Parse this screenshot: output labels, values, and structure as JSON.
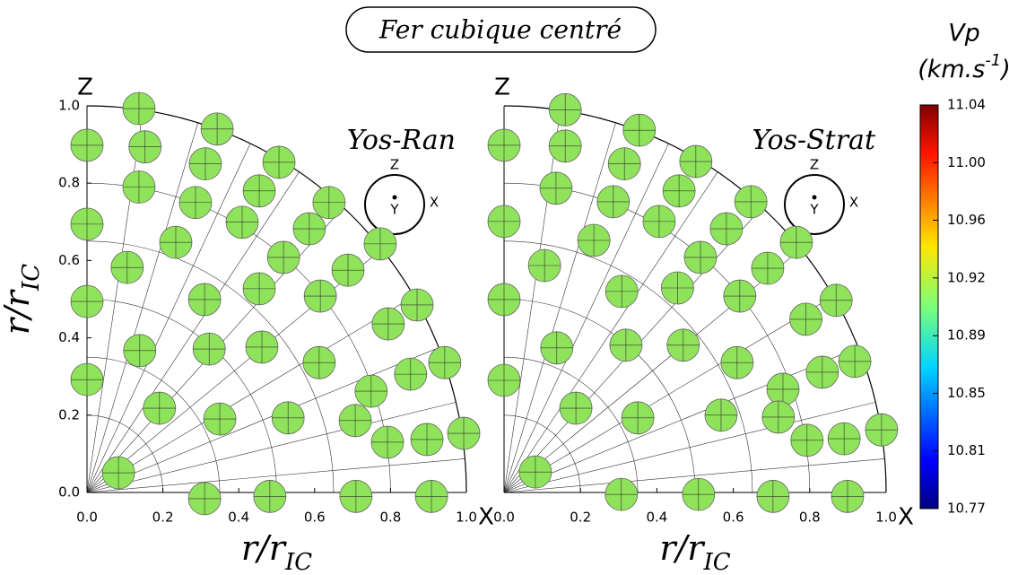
{
  "title": "Fer cubique centré",
  "colorbar": {
    "label": "Vp",
    "unit": "(km.s",
    "unit_sup": "-1",
    "unit_end": ")",
    "clim": [
      10.77,
      11.04
    ],
    "ticks": [
      10.77,
      {
        "value": 10.8086,
        "label": "10.81"
      },
      {
        "value": 10.8471,
        "label": "10.85"
      },
      {
        "value": 10.8857,
        "label": "10.89"
      },
      {
        "value": 10.9243,
        "label": "10.92"
      },
      {
        "value": 10.9629,
        "label": "10.96"
      },
      {
        "value": 11.0014,
        "label": "11.00"
      },
      11.04
    ]
  },
  "chart_data": [
    {
      "type": "scatter",
      "title": "Yos-Ran",
      "color": "#8fe35a",
      "top_label": "Z",
      "right_label": "X",
      "inset": {
        "top": "Z",
        "center": "Y",
        "right": "X"
      },
      "xlabel": {
        "main": "r/r",
        "sub": "IC"
      },
      "ylabel": {
        "main": "r/r",
        "sub": "IC"
      },
      "x": [
        0.137,
        0.343,
        0,
        0.153,
        0.312,
        0.506,
        0.137,
        0.286,
        0.454,
        0.638,
        0,
        0.409,
        0.234,
        0.586,
        0.773,
        0.518,
        0.106,
        0.688,
        0.454,
        0.615,
        0,
        0.31,
        0.87,
        0.794,
        0.139,
        0.322,
        0.461,
        0.612,
        0.943,
        0.853,
        0.749,
        0,
        0.191,
        0.35,
        0.53,
        0.707,
        0.993,
        0.896,
        0.792,
        0.083,
        0.31,
        0.482,
        0.709,
        0.908
      ],
      "y": [
        0.993,
        0.94,
        0.898,
        0.894,
        0.85,
        0.854,
        0.79,
        0.75,
        0.78,
        0.75,
        0.694,
        0.699,
        0.647,
        0.682,
        0.643,
        0.608,
        0.582,
        0.575,
        0.527,
        0.508,
        0.494,
        0.499,
        0.485,
        0.436,
        0.367,
        0.371,
        0.376,
        0.336,
        0.336,
        0.306,
        0.262,
        0.292,
        0.218,
        0.19,
        0.193,
        0.186,
        0.153,
        0.137,
        0.13,
        0.051,
        -0.016,
        -0.01,
        -0.01,
        -0.01
      ],
      "xlim": [
        0,
        1
      ],
      "ylim": [
        0,
        1
      ],
      "xticks": [
        {
          "value": 0,
          "label": "0.0"
        },
        0.2,
        0.4,
        0.6,
        0.8,
        {
          "value": 1,
          "label": "1.0"
        }
      ],
      "yticks": [
        {
          "value": 0,
          "label": "0.0"
        },
        0.2,
        0.4,
        0.6,
        0.8,
        {
          "value": 1,
          "label": "1.0"
        }
      ]
    },
    {
      "type": "scatter",
      "title": "Yos-Strat",
      "color": "#8fe35a",
      "top_label": "Z",
      "right_label": "X",
      "inset": {
        "top": "Z",
        "center": "Y",
        "right": "X"
      },
      "xlabel": {
        "main": "r/r",
        "sub": "IC"
      },
      "x": [
        0.16,
        0.354,
        0,
        0.16,
        0.315,
        0.502,
        0.136,
        0.286,
        0.458,
        0.646,
        0,
        0.406,
        0.235,
        0.582,
        0.765,
        0.514,
        0.106,
        0.69,
        0.454,
        0.617,
        0,
        0.308,
        0.869,
        0.79,
        0.138,
        0.319,
        0.469,
        0.61,
        0.918,
        0.833,
        0.73,
        0,
        0.188,
        0.35,
        0.568,
        0.718,
        0.988,
        0.89,
        0.793,
        0.082,
        0.307,
        0.509,
        0.704,
        0.899
      ],
      "y": [
        0.99,
        0.937,
        0.898,
        0.896,
        0.85,
        0.856,
        0.787,
        0.752,
        0.78,
        0.752,
        0.701,
        0.701,
        0.652,
        0.682,
        0.647,
        0.608,
        0.587,
        0.58,
        0.529,
        0.508,
        0.499,
        0.52,
        0.497,
        0.448,
        0.374,
        0.381,
        0.381,
        0.336,
        0.339,
        0.311,
        0.267,
        0.29,
        0.218,
        0.193,
        0.2,
        0.195,
        0.162,
        0.139,
        0.135,
        0.053,
        -0.005,
        -0.005,
        -0.01,
        -0.01
      ],
      "xlim": [
        0,
        1
      ],
      "ylim": [
        0,
        1
      ],
      "xticks": [
        {
          "value": 0,
          "label": "0.0"
        },
        0.2,
        0.4,
        0.6,
        0.8,
        {
          "value": 1,
          "label": "1.0"
        }
      ]
    }
  ]
}
